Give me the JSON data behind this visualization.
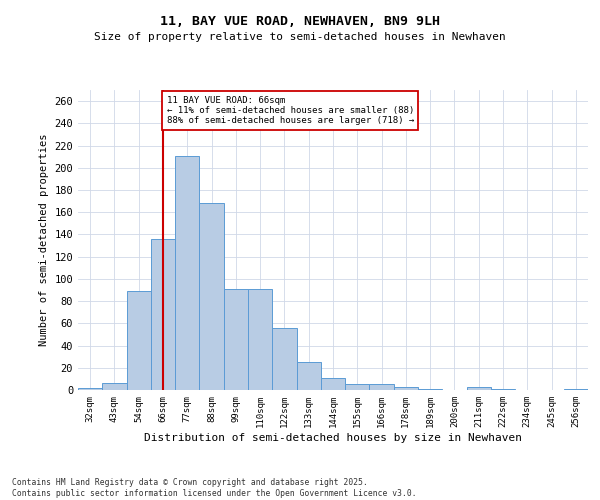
{
  "title1": "11, BAY VUE ROAD, NEWHAVEN, BN9 9LH",
  "title2": "Size of property relative to semi-detached houses in Newhaven",
  "xlabel": "Distribution of semi-detached houses by size in Newhaven",
  "ylabel": "Number of semi-detached properties",
  "categories": [
    "32sqm",
    "43sqm",
    "54sqm",
    "66sqm",
    "77sqm",
    "88sqm",
    "99sqm",
    "110sqm",
    "122sqm",
    "133sqm",
    "144sqm",
    "155sqm",
    "166sqm",
    "178sqm",
    "189sqm",
    "200sqm",
    "211sqm",
    "222sqm",
    "234sqm",
    "245sqm",
    "256sqm"
  ],
  "values": [
    2,
    6,
    89,
    136,
    211,
    168,
    91,
    91,
    56,
    25,
    11,
    5,
    5,
    3,
    1,
    0,
    3,
    1,
    0,
    0,
    1
  ],
  "bar_color": "#b8cce4",
  "bar_edge_color": "#5b9bd5",
  "property_size": 66,
  "property_line_index": 3,
  "pct_smaller": 11,
  "pct_smaller_count": 88,
  "pct_larger": 88,
  "pct_larger_count": 718,
  "annotation_box_color": "#ffffff",
  "annotation_box_edge": "#cc0000",
  "vline_color": "#cc0000",
  "grid_color": "#d0d8e8",
  "background_color": "#ffffff",
  "footer": "Contains HM Land Registry data © Crown copyright and database right 2025.\nContains public sector information licensed under the Open Government Licence v3.0.",
  "ylim": [
    0,
    270
  ],
  "yticks": [
    0,
    20,
    40,
    60,
    80,
    100,
    120,
    140,
    160,
    180,
    200,
    220,
    240,
    260
  ]
}
